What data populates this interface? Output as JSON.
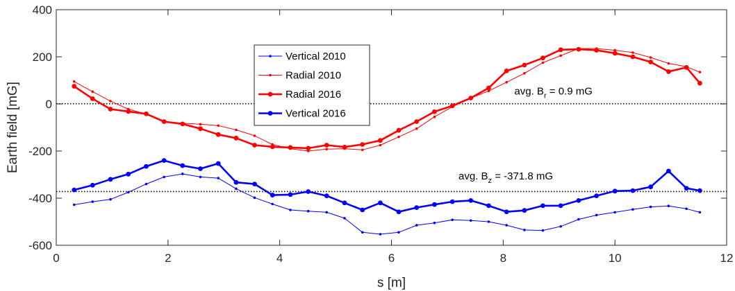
{
  "chart_data": {
    "type": "line",
    "xlabel": "s [m]",
    "ylabel": "Earth field [mG]",
    "xlim": [
      0,
      12
    ],
    "ylim": [
      -600,
      400
    ],
    "xticks": [
      0,
      2,
      4,
      6,
      8,
      10,
      12
    ],
    "yticks": [
      -600,
      -400,
      -200,
      0,
      200,
      400
    ],
    "grid": false,
    "legend_position": "top-left-center",
    "series": [
      {
        "name": "Vertical 2010",
        "color": "#0000ff",
        "weight": "thin",
        "x": [
          0.32,
          0.65,
          0.97,
          1.29,
          1.61,
          1.93,
          2.26,
          2.58,
          2.9,
          3.22,
          3.55,
          3.87,
          4.19,
          4.51,
          4.84,
          5.16,
          5.48,
          5.8,
          6.13,
          6.45,
          6.77,
          7.09,
          7.42,
          7.74,
          8.06,
          8.38,
          8.71,
          9.03,
          9.35,
          9.67,
          10.0,
          10.32,
          10.64,
          10.96,
          11.28,
          11.52
        ],
        "y": [
          -428,
          -415,
          -405,
          -375,
          -340,
          -310,
          -297,
          -310,
          -315,
          -360,
          -398,
          -425,
          -450,
          -455,
          -460,
          -485,
          -545,
          -553,
          -545,
          -515,
          -505,
          -492,
          -495,
          -500,
          -515,
          -535,
          -537,
          -520,
          -490,
          -472,
          -460,
          -448,
          -437,
          -433,
          -445,
          -460
        ]
      },
      {
        "name": "Radial 2010",
        "color": "#ff0000",
        "weight": "thin",
        "x": [
          0.32,
          0.65,
          0.97,
          1.29,
          1.61,
          1.93,
          2.26,
          2.58,
          2.9,
          3.22,
          3.55,
          3.87,
          4.19,
          4.51,
          4.84,
          5.16,
          5.48,
          5.8,
          6.13,
          6.45,
          6.77,
          7.09,
          7.42,
          7.74,
          8.06,
          8.38,
          8.71,
          9.03,
          9.35,
          9.67,
          10.0,
          10.32,
          10.64,
          10.96,
          11.28,
          11.52
        ],
        "y": [
          95,
          52,
          12,
          -22,
          -43,
          -75,
          -82,
          -86,
          -92,
          -110,
          -135,
          -172,
          -190,
          -200,
          -192,
          -190,
          -195,
          -175,
          -140,
          -105,
          -55,
          -12,
          25,
          55,
          92,
          130,
          175,
          205,
          235,
          235,
          228,
          218,
          197,
          172,
          158,
          135
        ]
      },
      {
        "name": "Radial 2016",
        "color": "#ff0000",
        "weight": "thick",
        "x": [
          0.32,
          0.65,
          0.97,
          1.29,
          1.61,
          1.93,
          2.26,
          2.58,
          2.9,
          3.22,
          3.55,
          3.87,
          4.19,
          4.51,
          4.84,
          5.16,
          5.48,
          5.8,
          6.13,
          6.45,
          6.77,
          7.09,
          7.42,
          7.74,
          8.06,
          8.38,
          8.71,
          9.03,
          9.35,
          9.67,
          10.0,
          10.32,
          10.64,
          10.96,
          11.28,
          11.52
        ],
        "y": [
          75,
          22,
          -22,
          -32,
          -42,
          -75,
          -85,
          -105,
          -130,
          -145,
          -175,
          -182,
          -185,
          -188,
          -175,
          -183,
          -172,
          -155,
          -112,
          -75,
          -33,
          -8,
          25,
          68,
          140,
          165,
          195,
          230,
          232,
          228,
          215,
          200,
          178,
          137,
          155,
          88
        ]
      },
      {
        "name": "Vertical 2016",
        "color": "#0000ff",
        "weight": "thick",
        "x": [
          0.32,
          0.65,
          0.97,
          1.29,
          1.61,
          1.93,
          2.26,
          2.58,
          2.9,
          3.22,
          3.55,
          3.87,
          4.19,
          4.51,
          4.84,
          5.16,
          5.48,
          5.8,
          6.13,
          6.45,
          6.77,
          7.09,
          7.42,
          7.74,
          8.06,
          8.38,
          8.71,
          9.03,
          9.35,
          9.67,
          10.0,
          10.32,
          10.64,
          10.96,
          11.28,
          11.52
        ],
        "y": [
          -365,
          -345,
          -320,
          -298,
          -265,
          -240,
          -262,
          -275,
          -253,
          -333,
          -340,
          -387,
          -385,
          -372,
          -390,
          -420,
          -450,
          -420,
          -458,
          -440,
          -427,
          -415,
          -410,
          -432,
          -458,
          -452,
          -432,
          -432,
          -410,
          -390,
          -370,
          -368,
          -352,
          -285,
          -358,
          -368
        ]
      }
    ],
    "reference_lines": [
      {
        "y": 0.9,
        "label_prefix": "avg. B",
        "label_sub": "r",
        "label_suffix": " = 0.9 mG",
        "label_x": 8.2,
        "label_y": 40
      },
      {
        "y": -371.8,
        "label_prefix": "avg. B",
        "label_sub": "z",
        "label_suffix": " = -371.8 mG",
        "label_x": 7.2,
        "label_y": -320
      }
    ]
  }
}
